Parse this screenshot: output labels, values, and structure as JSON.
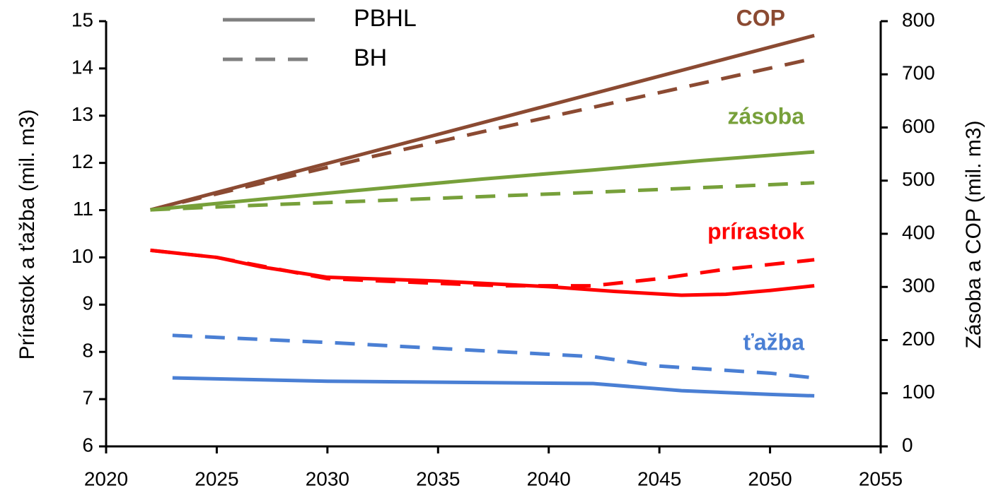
{
  "chart_data": {
    "type": "line",
    "y_label": "Prírastok a ťažba (mil. m3)",
    "y2_label": "Zásoba a COP (mil. m3)",
    "xlim": [
      2020,
      2055
    ],
    "xticks": [
      2020,
      2025,
      2030,
      2035,
      2040,
      2045,
      2050,
      2055
    ],
    "ylim": [
      6,
      15
    ],
    "yticks": [
      6,
      7,
      8,
      9,
      10,
      11,
      12,
      13,
      14,
      15
    ],
    "y2lim": [
      0,
      800
    ],
    "y2ticks": [
      0,
      100,
      200,
      300,
      400,
      500,
      600,
      700,
      800
    ],
    "legend": {
      "position": "top-left",
      "entries": [
        {
          "label": "PBHL",
          "style": "solid"
        },
        {
          "label": "BH",
          "style": "dashed"
        }
      ]
    },
    "series": [
      {
        "name": "COP",
        "color": "#8b4a32",
        "axis": "y2",
        "lines": [
          {
            "style": "solid",
            "x": [
              2022,
              2052
            ],
            "values": [
              445,
              773
            ]
          },
          {
            "style": "dashed",
            "x": [
              2022,
              2027,
              2032,
              2037,
              2042,
              2047,
              2052
            ],
            "values": [
              445,
              495,
              545,
              592,
              638,
              684,
              730
            ]
          }
        ]
      },
      {
        "name": "zásoba",
        "color": "#77a03a",
        "axis": "y2",
        "lines": [
          {
            "style": "solid",
            "x": [
              2022,
              2027,
              2032,
              2037,
              2042,
              2047,
              2052
            ],
            "values": [
              445,
              465,
              484,
              503,
              520,
              538,
              554
            ]
          },
          {
            "style": "dashed",
            "x": [
              2022,
              2027,
              2032,
              2037,
              2042,
              2047,
              2052
            ],
            "values": [
              445,
              454,
              462,
              470,
              478,
              487,
              496
            ]
          }
        ]
      },
      {
        "name": "prírastok",
        "color": "#ff0000",
        "axis": "y",
        "lines": [
          {
            "style": "solid",
            "x": [
              2022,
              2025,
              2027,
              2030,
              2035,
              2040,
              2043,
              2046,
              2048,
              2050,
              2052
            ],
            "values": [
              10.15,
              10.0,
              9.8,
              9.58,
              9.5,
              9.38,
              9.28,
              9.2,
              9.22,
              9.3,
              9.4
            ]
          },
          {
            "style": "dashed",
            "x": [
              2022,
              2025,
              2027,
              2030,
              2035,
              2038,
              2042,
              2045,
              2048,
              2052
            ],
            "values": [
              10.15,
              10.0,
              9.82,
              9.55,
              9.45,
              9.4,
              9.4,
              9.55,
              9.75,
              9.95
            ]
          }
        ]
      },
      {
        "name": "ťažba",
        "color": "#4a7fd4",
        "axis": "y",
        "lines": [
          {
            "style": "solid",
            "x": [
              2023,
              2030,
              2042,
              2046,
              2050,
              2052
            ],
            "values": [
              7.45,
              7.38,
              7.33,
              7.18,
              7.1,
              7.07
            ]
          },
          {
            "style": "dashed",
            "x": [
              2023,
              2030,
              2036,
              2042,
              2045,
              2050,
              2052
            ],
            "values": [
              8.35,
              8.2,
              8.05,
              7.9,
              7.7,
              7.55,
              7.45
            ]
          }
        ]
      }
    ]
  }
}
